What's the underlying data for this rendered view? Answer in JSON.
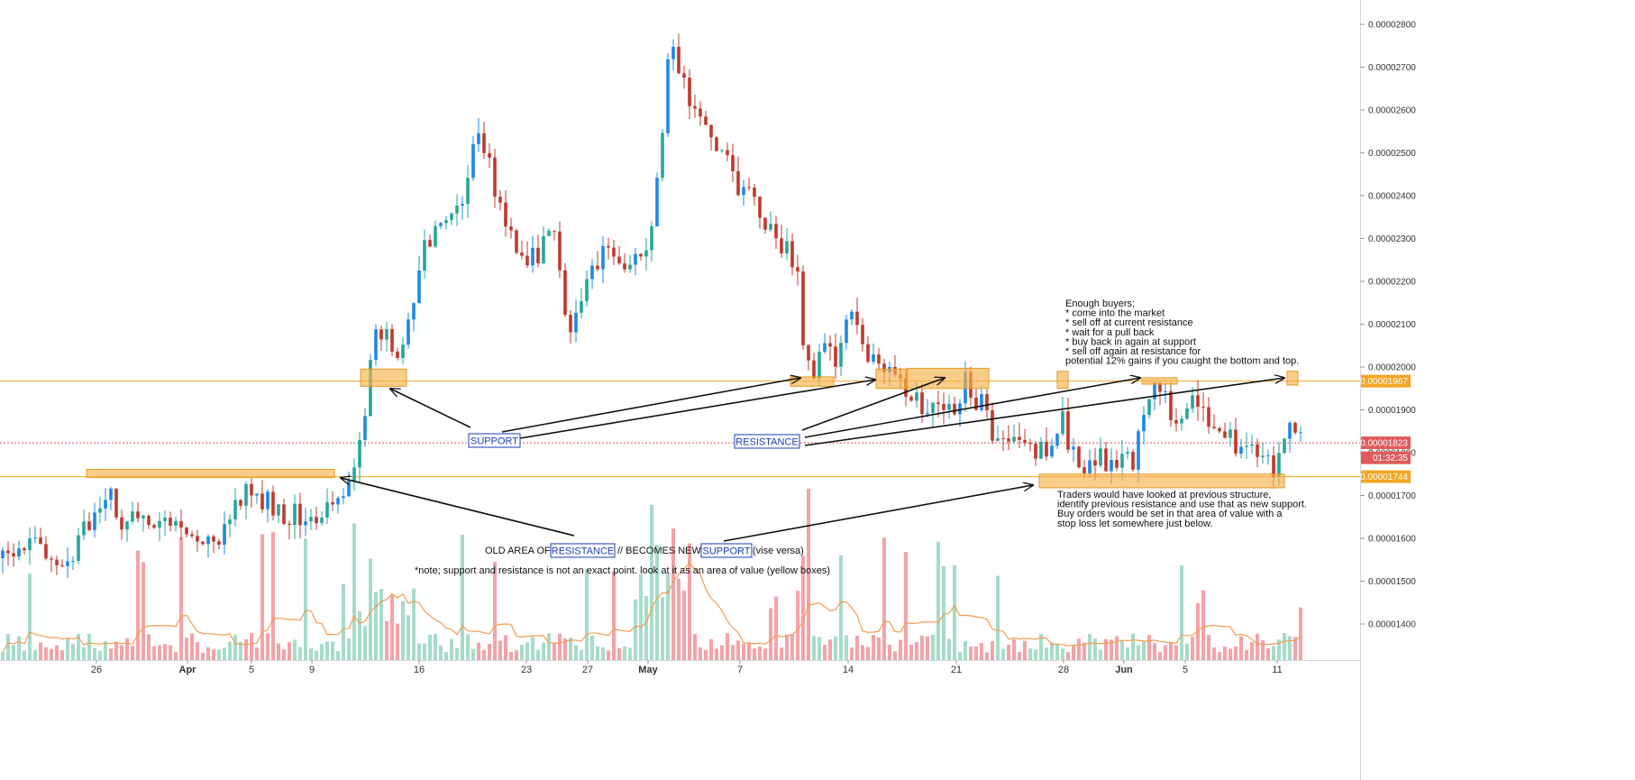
{
  "chart_data": {
    "type": "candlestick",
    "y_axis": {
      "ticks": [
        "0.00002800",
        "0.00002700",
        "0.00002600",
        "0.00002500",
        "0.00002400",
        "0.00002300",
        "0.00002200",
        "0.00002100",
        "0.00002000",
        "0.00001900",
        "0.00001800",
        "0.00001700",
        "0.00001600",
        "0.00001500",
        "0.00001400"
      ],
      "range": [
        1.325e-05,
        2.855e-05
      ]
    },
    "x_axis": {
      "ticks": [
        {
          "label": "26",
          "bold": false
        },
        {
          "label": "Apr",
          "bold": true
        },
        {
          "label": "5",
          "bold": false
        },
        {
          "label": "9",
          "bold": false
        },
        {
          "label": "16",
          "bold": false
        },
        {
          "label": "23",
          "bold": false
        },
        {
          "label": "27",
          "bold": false
        },
        {
          "label": "May",
          "bold": true
        },
        {
          "label": "7",
          "bold": false
        },
        {
          "label": "14",
          "bold": false
        },
        {
          "label": "21",
          "bold": false
        },
        {
          "label": "28",
          "bold": false
        },
        {
          "label": "Jun",
          "bold": true
        },
        {
          "label": "5",
          "bold": false
        },
        {
          "label": "11",
          "bold": false
        }
      ]
    },
    "price_path": [
      [
        0,
        1.55e-05
      ],
      [
        40,
        1.6e-05
      ],
      [
        70,
        1.54e-05
      ],
      [
        95,
        1.62e-05
      ],
      [
        120,
        1.72e-05
      ],
      [
        135,
        1.65e-05
      ],
      [
        170,
        1.63e-05
      ],
      [
        210,
        1.6e-05
      ],
      [
        240,
        1.57e-05
      ],
      [
        270,
        1.72e-05
      ],
      [
        300,
        1.68e-05
      ],
      [
        325,
        1.65e-05
      ],
      [
        350,
        1.66e-05
      ],
      [
        375,
        1.71e-05
      ],
      [
        385,
        1.73e-05
      ],
      [
        395,
        1.8e-05
      ],
      [
        405,
        1.9e-05
      ],
      [
        412,
        2.05e-05
      ],
      [
        425,
        2.1e-05
      ],
      [
        445,
        2e-05
      ],
      [
        458,
        2.15e-05
      ],
      [
        470,
        2.28e-05
      ],
      [
        490,
        2.32e-05
      ],
      [
        510,
        2.38e-05
      ],
      [
        525,
        2.53e-05
      ],
      [
        540,
        2.5e-05
      ],
      [
        555,
        2.36e-05
      ],
      [
        575,
        2.26e-05
      ],
      [
        600,
        2.27e-05
      ],
      [
        615,
        2.31e-05
      ],
      [
        630,
        2.1e-05
      ],
      [
        640,
        2.12e-05
      ],
      [
        655,
        2.24e-05
      ],
      [
        670,
        2.26e-05
      ],
      [
        690,
        2.22e-05
      ],
      [
        710,
        2.26e-05
      ],
      [
        725,
        2.35e-05
      ],
      [
        735,
        2.52e-05
      ],
      [
        742,
        2.75e-05
      ],
      [
        752,
        2.72e-05
      ],
      [
        765,
        2.62e-05
      ],
      [
        780,
        2.55e-05
      ],
      [
        800,
        2.5e-05
      ],
      [
        815,
        2.44e-05
      ],
      [
        830,
        2.4e-05
      ],
      [
        845,
        2.36e-05
      ],
      [
        860,
        2.3e-05
      ],
      [
        875,
        2.28e-05
      ],
      [
        885,
        2.22e-05
      ],
      [
        892,
        2e-05
      ],
      [
        900,
        1.98e-05
      ],
      [
        915,
        2.05e-05
      ],
      [
        925,
        2e-05
      ],
      [
        938,
        2.12e-05
      ],
      [
        955,
        2.07e-05
      ],
      [
        970,
        2.01e-05
      ],
      [
        985,
        1.98e-05
      ],
      [
        1000,
        1.96e-05
      ],
      [
        1015,
        1.94e-05
      ],
      [
        1030,
        1.9e-05
      ],
      [
        1045,
        1.9e-05
      ],
      [
        1060,
        1.92e-05
      ],
      [
        1072,
        1.97e-05
      ],
      [
        1082,
        1.93e-05
      ],
      [
        1092,
        1.9e-05
      ],
      [
        1103,
        1.81e-05
      ],
      [
        1120,
        1.81e-05
      ],
      [
        1140,
        1.8e-05
      ],
      [
        1160,
        1.8e-05
      ],
      [
        1180,
        1.87e-05
      ],
      [
        1190,
        1.8e-05
      ],
      [
        1205,
        1.76e-05
      ],
      [
        1220,
        1.79e-05
      ],
      [
        1240,
        1.77e-05
      ],
      [
        1260,
        1.78e-05
      ],
      [
        1272,
        1.95e-05
      ],
      [
        1283,
        1.94e-05
      ],
      [
        1295,
        1.92e-05
      ],
      [
        1305,
        1.86e-05
      ],
      [
        1320,
        1.91e-05
      ],
      [
        1335,
        1.9e-05
      ],
      [
        1355,
        1.84e-05
      ],
      [
        1375,
        1.82e-05
      ],
      [
        1395,
        1.8e-05
      ],
      [
        1410,
        1.77e-05
      ],
      [
        1422,
        1.78e-05
      ],
      [
        1432,
        1.88e-05
      ],
      [
        1443,
        1.82e-05
      ]
    ],
    "lines": [
      {
        "price": "0.00001967",
        "color": "#f5a623",
        "style": "solid"
      },
      {
        "price": "0.00001744",
        "color": "#f5a623",
        "style": "solid"
      },
      {
        "price": "0.00001823",
        "color": "#d9534f",
        "style": "dotted"
      }
    ],
    "price_labels": [
      {
        "text": "0.00001967",
        "price": 1.967e-05,
        "color": "#f5a623"
      },
      {
        "text": "0.00001823",
        "price": 1.823e-05,
        "color": "#e15a5a"
      },
      {
        "text": "01:32:35",
        "price": 1.788e-05,
        "color": "#e15a5a"
      },
      {
        "text": "0.00001744",
        "price": 1.744e-05,
        "color": "#f5a623"
      }
    ],
    "hidden_label_fragment": "0.",
    "zones": [
      {
        "x1": 400,
        "x2": 451,
        "p1": 1.995e-05,
        "p2": 1.955e-05
      },
      {
        "x1": 96,
        "x2": 371,
        "p1": 1.761e-05,
        "p2": 1.742e-05
      },
      {
        "x1": 877,
        "x2": 925,
        "p1": 1.977e-05,
        "p2": 1.955e-05
      },
      {
        "x1": 972,
        "x2": 1007,
        "p1": 1.995e-05,
        "p2": 1.95e-05
      },
      {
        "x1": 1006,
        "x2": 1097,
        "p1": 1.997e-05,
        "p2": 1.95e-05
      },
      {
        "x1": 1173,
        "x2": 1185,
        "p1": 1.99e-05,
        "p2": 1.95e-05
      },
      {
        "x1": 1267,
        "x2": 1306,
        "p1": 1.975e-05,
        "p2": 1.96e-05
      },
      {
        "x1": 1428,
        "x2": 1440,
        "p1": 1.99e-05,
        "p2": 1.958e-05
      },
      {
        "x1": 1153,
        "x2": 1425,
        "p1": 1.75e-05,
        "p2": 1.718e-05
      }
    ],
    "annotations": {
      "support_tag": "SUPPORT",
      "resistance_tag": "RESISTANCE",
      "old_area_prefix": "OLD AREA OF",
      "old_area_tag": "RESISTANCE",
      "old_area_mid": "//   BECOMES NEW",
      "old_area_tag2": "SUPPORT",
      "old_area_suffix": "(vise versa)",
      "note": "*note; support and resistance is not an exact point. look at it as an area of value (yellow boxes)",
      "buyers_block": [
        "Enough buyers;",
        "* come into the market",
        "* sell off at current resistance",
        "* wait for a pull back",
        "* buy back in again at support",
        "* sell off again at resistance for",
        "potential 12% gains if you caught the bottom and top."
      ],
      "traders_block": [
        "Traders would have looked at previous structure,",
        "identify previous resistance and use that as new support.",
        "Buy orders would be set in that area of value with a",
        "stop loss let somewhere just below."
      ]
    },
    "colors": {
      "up": "#26a69a",
      "up_accent": "#1e88e5",
      "down": "#c0392b",
      "volume_up": "#a7dcc8",
      "volume_down": "#f4a3a8",
      "volume_ma": "#f39c50",
      "zone_fill": "#f9b24d",
      "zone_stroke": "#e89a1f",
      "arrow": "#111111",
      "tag_stroke": "#1a3bbd"
    }
  }
}
